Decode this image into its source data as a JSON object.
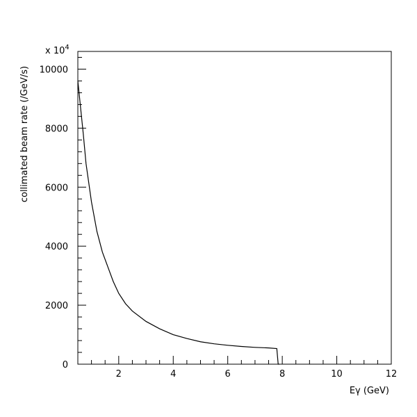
{
  "chart_data": {
    "type": "line",
    "xlabel": "Eγ (GeV)",
    "ylabel": "collimated beam rate (/GeV/s)",
    "multiplier": "x 10",
    "multiplier_exp": "4",
    "xlim": [
      0.5,
      12
    ],
    "ylim": [
      0,
      10600
    ],
    "x_ticks": [
      2,
      4,
      6,
      8,
      10,
      12
    ],
    "y_ticks": [
      0,
      2000,
      4000,
      6000,
      8000,
      10000
    ],
    "x_tick_labels": [
      "2",
      "4",
      "6",
      "8",
      "10",
      "12"
    ],
    "y_tick_labels": [
      "0",
      "2000",
      "4000",
      "6000",
      "8000",
      "10000"
    ],
    "grid": false,
    "series": [
      {
        "x": [
          0.5,
          0.6,
          0.7,
          0.8,
          1.0,
          1.2,
          1.4,
          1.6,
          1.8,
          2.0,
          2.25,
          2.5,
          3.0,
          3.5,
          4.0,
          4.5,
          5.0,
          5.5,
          6.0,
          6.5,
          7.0,
          7.5,
          7.8,
          7.85,
          7.9
        ],
        "y": [
          9600,
          8700,
          7800,
          6800,
          5500,
          4500,
          3800,
          3300,
          2800,
          2400,
          2050,
          1800,
          1450,
          1200,
          1000,
          870,
          760,
          690,
          640,
          600,
          570,
          550,
          530,
          0,
          0
        ]
      }
    ]
  }
}
